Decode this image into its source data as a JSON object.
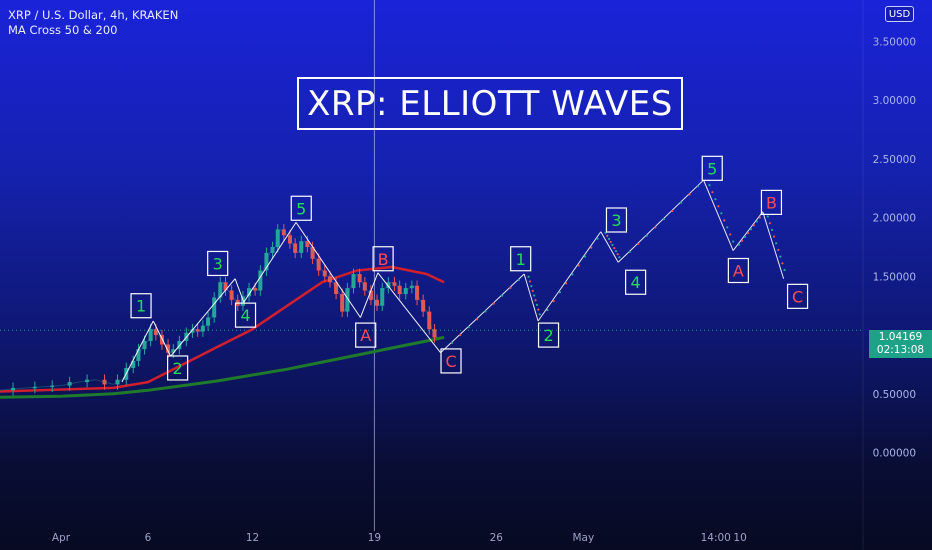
{
  "header": {
    "symbol_line": "XRP / U.S. Dollar, 4h, KRAKEN",
    "indicator_line": "MA Cross 50 & 200"
  },
  "title": "XRP: ELLIOTT WAVES",
  "currency_button": "USD",
  "last_price": {
    "price": "1.04169",
    "countdown": "02:13:08",
    "value": 1.04169
  },
  "colors": {
    "wave_label_green": "#22dd55",
    "wave_label_red": "#ff4b55",
    "ma50": "#d21f2c",
    "ma200": "#1f7a2c",
    "candle_up": "#26a69a",
    "candle_down": "#ef5350",
    "price_tag": "#1fa187"
  },
  "chart_data": {
    "type": "line",
    "y_axis": {
      "ticks": [
        "3.50000",
        "3.00000",
        "2.50000",
        "2.00000",
        "1.50000",
        "1.00000",
        "0.50000",
        "0.00000"
      ],
      "tick_values": [
        3.5,
        3.0,
        2.5,
        2.0,
        1.5,
        1.0,
        0.5,
        0.0
      ],
      "range": [
        -0.6,
        3.7
      ]
    },
    "x_axis": {
      "ticks": [
        "Apr",
        "6",
        "12",
        "19",
        "26",
        "May",
        "14:00",
        "10"
      ],
      "tick_days": [
        0,
        5,
        11,
        18,
        25,
        30,
        37.6,
        39
      ]
    },
    "x_range_days": [
      -3.5,
      46
    ],
    "cursor_day": 18,
    "series": [
      {
        "name": "XRP",
        "role": "price",
        "x": [
          -3.5,
          -2,
          -1,
          0,
          1,
          2,
          3,
          3.5,
          4,
          4.3,
          4.6,
          5,
          5.3,
          5.6,
          6.0,
          6.3,
          6.6,
          7,
          7.4,
          7.7,
          8.0,
          8.3,
          8.6,
          9.0,
          9.3,
          9.6,
          10.0,
          10.3,
          10.6,
          11.0,
          11.3,
          11.6,
          12.0,
          12.3,
          12.6,
          13.0,
          13.3,
          13.6,
          14.0,
          14.3,
          14.6,
          15.0,
          15.3,
          15.6,
          16.0,
          16.3,
          16.6,
          17.0,
          17.3,
          17.6,
          18.0,
          18.3,
          18.6,
          19.0,
          19.3,
          19.6,
          20.0,
          20.3,
          20.6,
          21.0,
          21.3,
          21.6
        ],
        "y": [
          0.53,
          0.55,
          0.56,
          0.57,
          0.6,
          0.62,
          0.58,
          0.62,
          0.72,
          0.78,
          0.88,
          0.95,
          1.05,
          1.0,
          0.92,
          0.85,
          0.88,
          0.95,
          1.02,
          1.05,
          1.03,
          1.08,
          1.15,
          1.32,
          1.45,
          1.38,
          1.3,
          1.25,
          1.33,
          1.4,
          1.38,
          1.55,
          1.7,
          1.75,
          1.9,
          1.85,
          1.78,
          1.7,
          1.8,
          1.75,
          1.65,
          1.55,
          1.5,
          1.45,
          1.35,
          1.2,
          1.4,
          1.52,
          1.45,
          1.38,
          1.3,
          1.25,
          1.4,
          1.45,
          1.42,
          1.35,
          1.4,
          1.42,
          1.3,
          1.2,
          1.05,
          0.98
        ]
      },
      {
        "name": "MA 50",
        "role": "ma50",
        "x": [
          -3.5,
          3,
          5,
          7,
          9,
          11,
          13,
          15,
          17,
          19,
          21,
          22
        ],
        "y": [
          0.52,
          0.55,
          0.6,
          0.75,
          0.9,
          1.05,
          1.25,
          1.45,
          1.55,
          1.58,
          1.52,
          1.45
        ]
      },
      {
        "name": "MA 200",
        "role": "ma200",
        "x": [
          -3.5,
          0,
          3,
          5,
          7,
          9,
          11,
          13,
          15,
          17,
          19,
          21,
          22
        ],
        "y": [
          0.47,
          0.48,
          0.5,
          0.53,
          0.57,
          0.61,
          0.66,
          0.71,
          0.77,
          0.83,
          0.89,
          0.95,
          0.98
        ]
      },
      {
        "name": "Wave path",
        "role": "wave",
        "x": [
          3.5,
          5.3,
          6.3,
          10.0,
          10.5,
          13.5,
          17.2,
          18.2,
          21.8,
          26.6,
          27.4,
          31.0,
          32.0,
          36.9,
          38.6,
          40.3,
          41.5
        ],
        "y": [
          0.6,
          1.12,
          0.82,
          1.48,
          1.28,
          1.96,
          1.15,
          1.53,
          0.85,
          1.52,
          1.12,
          1.88,
          1.62,
          2.32,
          1.72,
          2.05,
          1.48
        ]
      }
    ],
    "wave_labels": [
      {
        "text": "1",
        "x": 4.6,
        "y": 1.25,
        "color": "green"
      },
      {
        "text": "2",
        "x": 6.7,
        "y": 0.72,
        "color": "green"
      },
      {
        "text": "3",
        "x": 9.0,
        "y": 1.61,
        "color": "green"
      },
      {
        "text": "4",
        "x": 10.6,
        "y": 1.17,
        "color": "green"
      },
      {
        "text": "5",
        "x": 13.8,
        "y": 2.08,
        "color": "green"
      },
      {
        "text": "A",
        "x": 17.5,
        "y": 1.0,
        "color": "red"
      },
      {
        "text": "B",
        "x": 18.5,
        "y": 1.65,
        "color": "red"
      },
      {
        "text": "C",
        "x": 22.4,
        "y": 0.78,
        "color": "red"
      },
      {
        "text": "1",
        "x": 26.4,
        "y": 1.65,
        "color": "green"
      },
      {
        "text": "2",
        "x": 28.0,
        "y": 1.0,
        "color": "green"
      },
      {
        "text": "3",
        "x": 31.9,
        "y": 1.98,
        "color": "green"
      },
      {
        "text": "4",
        "x": 33.0,
        "y": 1.45,
        "color": "green"
      },
      {
        "text": "5",
        "x": 37.4,
        "y": 2.42,
        "color": "green"
      },
      {
        "text": "A",
        "x": 38.9,
        "y": 1.55,
        "color": "red"
      },
      {
        "text": "B",
        "x": 40.8,
        "y": 2.13,
        "color": "red"
      },
      {
        "text": "C",
        "x": 42.3,
        "y": 1.33,
        "color": "red"
      }
    ]
  }
}
